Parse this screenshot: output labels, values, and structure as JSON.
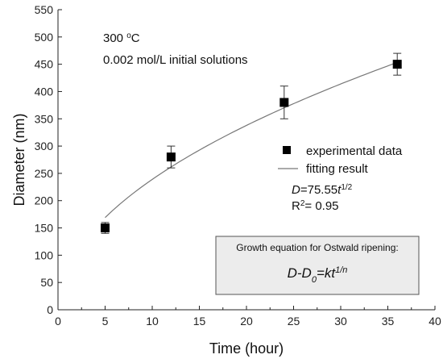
{
  "chart_data": {
    "type": "scatter",
    "xlabel": "Time (hour)",
    "ylabel": "Diameter (nm)",
    "xlim": [
      0,
      40
    ],
    "ylim": [
      0,
      550
    ],
    "xticks": [
      0,
      5,
      10,
      15,
      20,
      25,
      30,
      35,
      40
    ],
    "yticks": [
      0,
      50,
      100,
      150,
      200,
      250,
      300,
      350,
      400,
      450,
      500,
      550
    ],
    "grid": false,
    "series": [
      {
        "name": "experimental data",
        "marker": "square",
        "color": "#000000",
        "x": [
          5,
          12,
          24,
          36
        ],
        "y": [
          150,
          280,
          380,
          450
        ],
        "yerr": [
          10,
          20,
          30,
          20
        ]
      },
      {
        "name": "fitting result",
        "marker": "line",
        "color": "#777777",
        "fit": {
          "type": "sqrt",
          "coefficient": 75.55,
          "x_range": [
            5,
            36
          ]
        }
      }
    ],
    "legend_position": "middle-right",
    "annotations": {
      "temperature_value": "300 ",
      "temperature_unit_sup": "o",
      "temperature_unit": "C",
      "solution": "0.002 mol/L initial solutions",
      "fit_eq_var": "D",
      "fit_eq_mid": "=75.55",
      "fit_eq_t": "t",
      "fit_eq_exp": "1/2",
      "r2_prefix": "R",
      "r2_sup": "2",
      "r2_value": "= 0.95"
    },
    "growth_box": {
      "title": "Growth equation for Ostwald ripening:",
      "eq_lhs": "D-D",
      "eq_sub": "0",
      "eq_mid": "=kt",
      "eq_exp": "1/n"
    }
  }
}
